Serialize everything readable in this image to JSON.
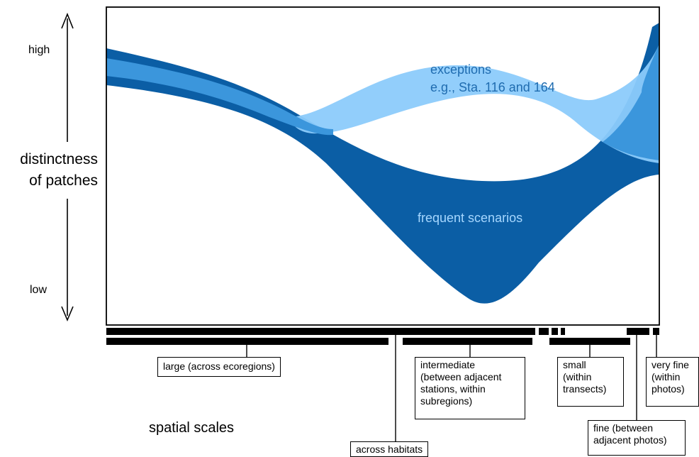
{
  "axis": {
    "high_label": "high",
    "low_label": "low",
    "ylabel": "distinctness\nof patches"
  },
  "bands": {
    "exceptions_label": "exceptions\ne.g., Sta. 116 and 164",
    "frequent_label": "frequent scenarios"
  },
  "scales": {
    "title": "spatial scales",
    "large": "large (across ecoregions)",
    "across_habitats": "across habitats",
    "intermediate": "intermediate\n(between adjacent\nstations, within\nsubregions)",
    "small": "small\n(within\ntransects)",
    "very_fine": "very fine\n(within\nphotos)",
    "fine": "fine (between\nadjacent photos)"
  },
  "colors": {
    "dark_blue": "#0b5ea5",
    "mid_blue": "#3b96dc",
    "light_blue": "#8ccbfb",
    "light_text": "#a6d7ff",
    "exceptions_text": "#1f6cb0"
  }
}
